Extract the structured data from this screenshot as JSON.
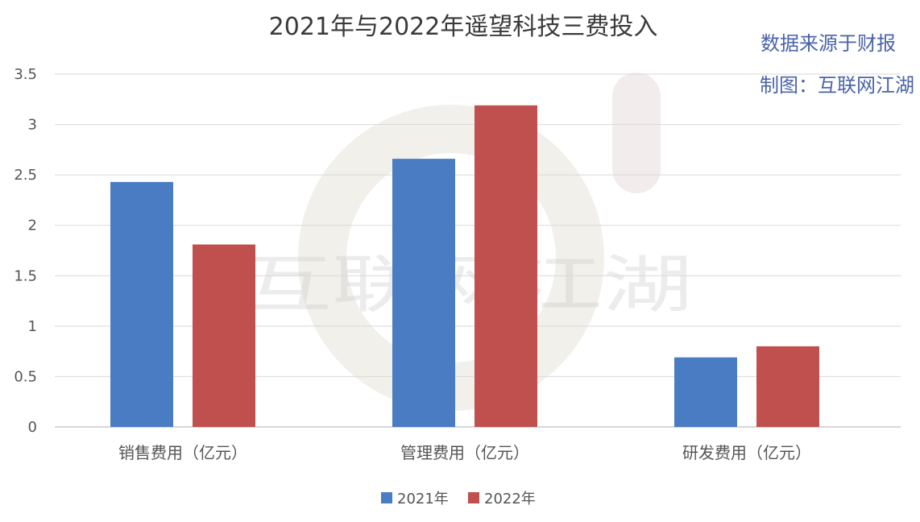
{
  "chart_data": {
    "type": "bar",
    "title": "2021年与2022年遥望科技三费投入",
    "categories": [
      "销售费用（亿元）",
      "管理费用（亿元）",
      "研发费用（亿元）"
    ],
    "series": [
      {
        "name": "2021年",
        "color": "#4a7cc3",
        "values": [
          2.43,
          2.66,
          0.69
        ]
      },
      {
        "name": "2022年",
        "color": "#c0504d",
        "values": [
          1.81,
          3.19,
          0.8
        ]
      }
    ],
    "ylim": [
      0,
      3.5
    ],
    "yticks": [
      "0",
      "0.5",
      "1",
      "1.5",
      "2",
      "2.5",
      "3",
      "3.5"
    ],
    "grid": true,
    "legend": "bottom"
  },
  "annotations": {
    "source_line": "数据来源于财报",
    "author_line": "制图：互联网江湖"
  },
  "watermark": {
    "text": "互联网江湖"
  }
}
